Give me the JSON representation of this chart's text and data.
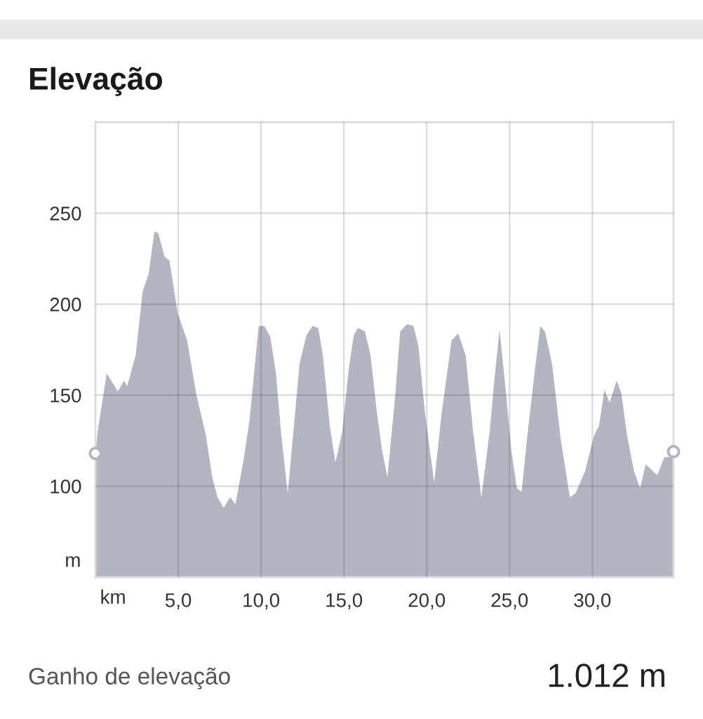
{
  "chart_data": {
    "type": "area",
    "title": "Elevação",
    "xlabel": "km",
    "ylabel": "m",
    "annotations": [
      "Ganho de elevação",
      "1.012 m"
    ],
    "xlim": [
      0,
      34.9
    ],
    "ylim": [
      50,
      300
    ],
    "xticks": [
      {
        "value": 5,
        "label": "5,0"
      },
      {
        "value": 10,
        "label": "10,0"
      },
      {
        "value": 15,
        "label": "15,0"
      },
      {
        "value": 20,
        "label": "20,0"
      },
      {
        "value": 25,
        "label": "25,0"
      },
      {
        "value": 30,
        "label": "30,0"
      }
    ],
    "yticks": [
      100,
      150,
      200,
      250
    ],
    "grid": true,
    "series": [
      {
        "color": "#b3b6c1",
        "x": [
          0,
          0.15,
          0.68,
          1.36,
          1.72,
          1.92,
          2.43,
          2.85,
          3.22,
          3.56,
          3.79,
          4.18,
          4.47,
          4.97,
          5.54,
          6.1,
          6.67,
          7.05,
          7.37,
          7.74,
          8.14,
          8.45,
          8.92,
          9.3,
          9.63,
          9.86,
          10.2,
          10.56,
          10.9,
          11.2,
          11.61,
          12.0,
          12.32,
          12.74,
          13.11,
          13.45,
          13.73,
          14.15,
          14.49,
          14.9,
          15.3,
          15.6,
          15.85,
          16.27,
          16.61,
          17.0,
          17.3,
          17.63,
          18.1,
          18.4,
          18.8,
          19.2,
          19.5,
          19.9,
          20.45,
          20.9,
          21.5,
          21.9,
          22.35,
          22.8,
          23.3,
          23.8,
          24.1,
          24.4,
          24.8,
          25.1,
          25.44,
          25.73,
          26.1,
          26.57,
          26.86,
          27.14,
          27.57,
          28.1,
          28.64,
          28.98,
          29.55,
          30.11,
          30.4,
          30.73,
          31.04,
          31.47,
          31.75,
          32.09,
          32.52,
          32.88,
          33.22,
          33.92,
          34.35,
          34.69,
          34.9
        ],
        "values": [
          118,
          131,
          162,
          152,
          158,
          155,
          172,
          207,
          217,
          240,
          239,
          226,
          224,
          195,
          180,
          150,
          128,
          105,
          94,
          88,
          94,
          90,
          113,
          136,
          167,
          188,
          188,
          182,
          162,
          130,
          96,
          135,
          167,
          183,
          188,
          187,
          172,
          133,
          113,
          130,
          165,
          183,
          187,
          185,
          172,
          140,
          120,
          105,
          150,
          185,
          189,
          188,
          177,
          140,
          102,
          140,
          180,
          184,
          172,
          130,
          94,
          130,
          160,
          186,
          150,
          120,
          99,
          97,
          130,
          167,
          188,
          185,
          167,
          125,
          94,
          96,
          108,
          128,
          133,
          153,
          146,
          158,
          151,
          128,
          108,
          99,
          112,
          106,
          116,
          116,
          119
        ]
      },
      {
        "type": "scatter",
        "color": "#b3b6c1",
        "marker": "circle",
        "x": [
          0,
          34.9
        ],
        "values": [
          118,
          119
        ]
      }
    ]
  }
}
